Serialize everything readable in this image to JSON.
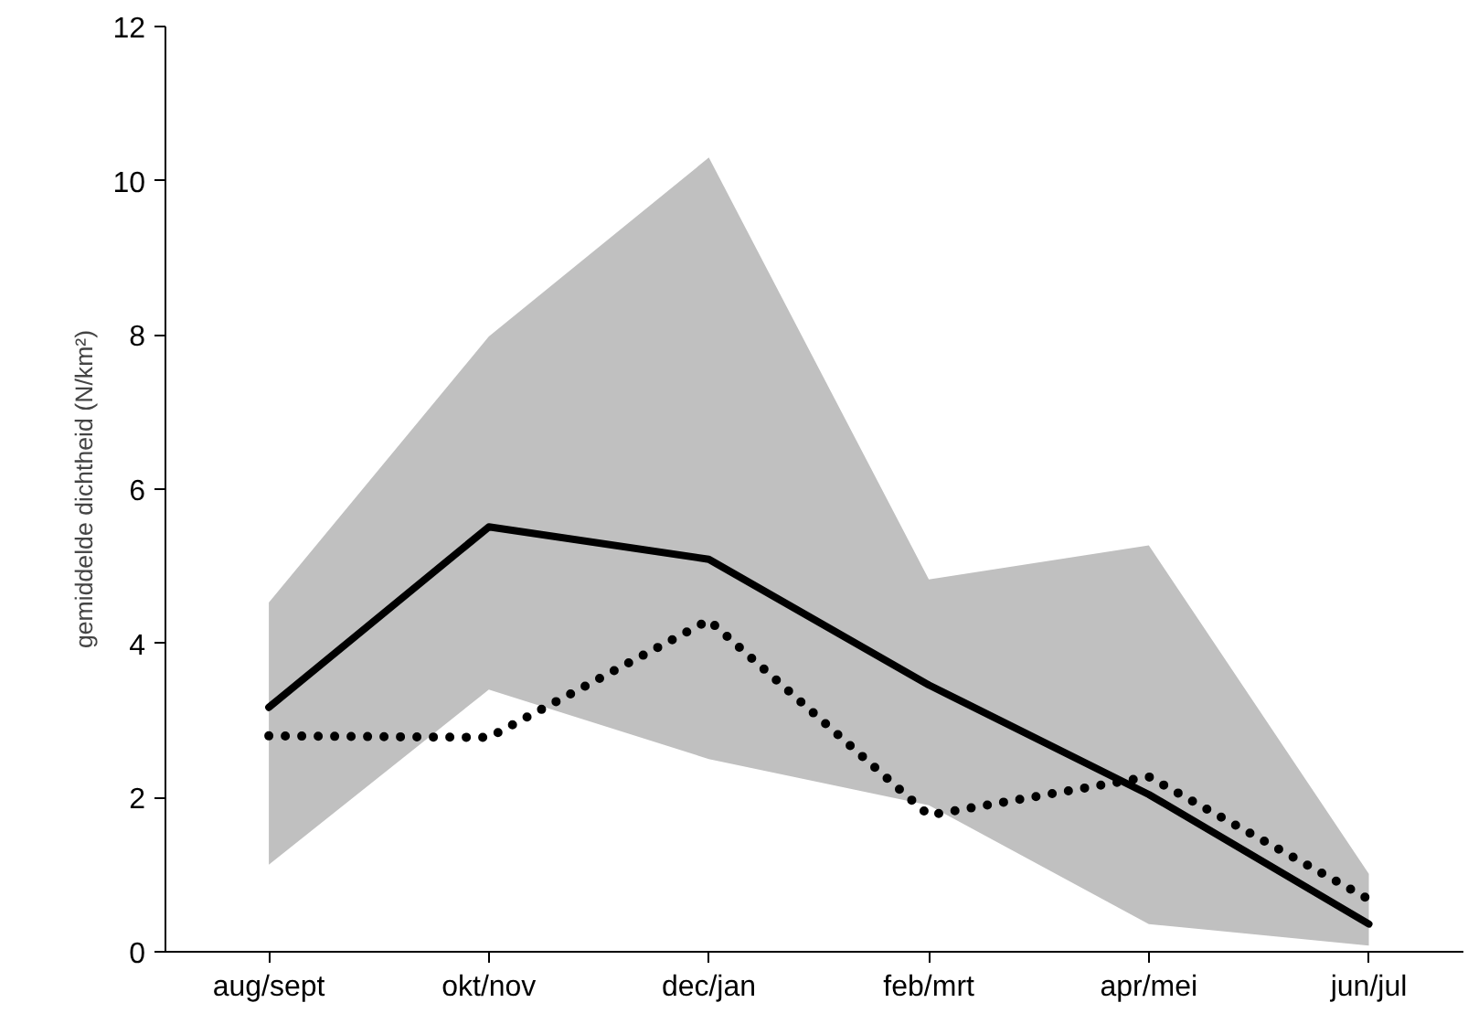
{
  "chart_data": {
    "type": "line",
    "ylabel": "gemiddelde dichtheid (N/km²)",
    "categories": [
      "aug/sept",
      "okt/nov",
      "dec/jan",
      "feb/mrt",
      "apr/mei",
      "jun/jul"
    ],
    "series": [
      {
        "color": "#000000",
        "line_style": "solid",
        "values": [
          3.17,
          5.51,
          5.09,
          3.46,
          2.04,
          0.36
        ],
        "lower": [
          1.13,
          3.4,
          2.5,
          1.9,
          0.36,
          0.08
        ],
        "upper": [
          4.53,
          7.98,
          10.3,
          4.83,
          5.27,
          1.01
        ]
      },
      {
        "color": "#000000",
        "line_style": "dotted",
        "values": [
          2.8,
          2.78,
          4.3,
          1.77,
          2.27,
          0.68
        ]
      }
    ],
    "ylim": [
      0,
      12
    ],
    "yticks": [
      0,
      2,
      4,
      6,
      8,
      10,
      12
    ],
    "grid": false,
    "marker": "none"
  }
}
